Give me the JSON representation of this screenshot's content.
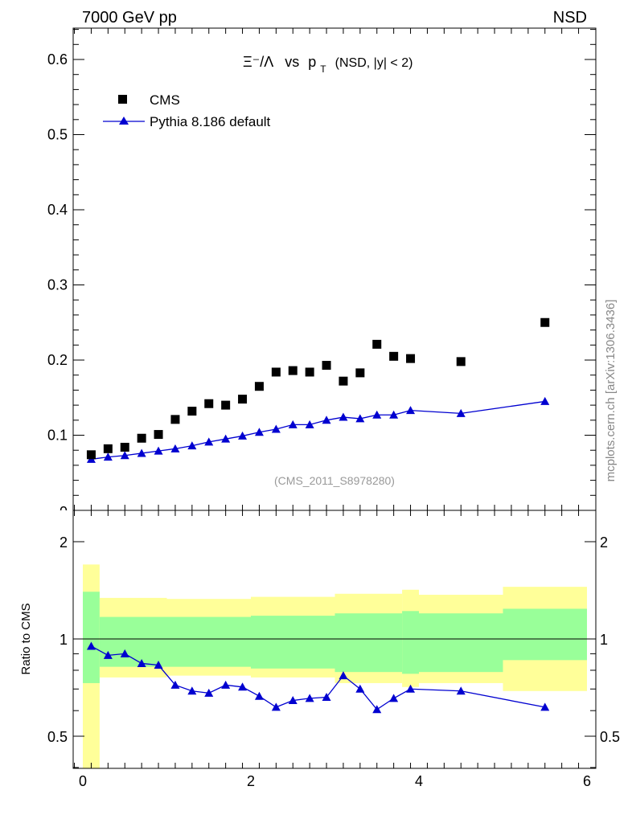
{
  "header": {
    "left": "7000 GeV pp",
    "right": "NSD"
  },
  "watermark": "mcplots.cern.ch [arXiv:1306.3436]",
  "analysis_tag": "(CMS_2011_S8978280)",
  "plot_title": {
    "ratio": "Ξ⁻/Λ",
    "vs": "vs",
    "var": "p",
    "var_sub": "T",
    "cut": "(NSD, |y| < 2)"
  },
  "legend": {
    "cms": "CMS",
    "mc": "Pythia 8.186 default"
  },
  "colors": {
    "mc_line": "#0000d0",
    "band_inner": "#99ff99",
    "band_outer": "#ffff99",
    "data": "#000000"
  },
  "chart_data": [
    {
      "type": "scatter",
      "ylim": [
        0,
        0.64
      ],
      "xlim": [
        -0.1,
        6.1
      ],
      "yticks": [
        0.1,
        0.2,
        0.3,
        0.4,
        0.5,
        0.6
      ],
      "ytick_labels": [
        "0.1",
        "0.2",
        "0.3",
        "0.4",
        "0.5",
        "0.6"
      ],
      "x": [
        0.1,
        0.3,
        0.5,
        0.7,
        0.9,
        1.1,
        1.3,
        1.5,
        1.7,
        1.9,
        2.1,
        2.3,
        2.5,
        2.7,
        2.9,
        3.1,
        3.3,
        3.5,
        3.7,
        3.9,
        4.5,
        5.5
      ],
      "series": [
        {
          "name": "CMS",
          "values": [
            0.074,
            0.082,
            0.084,
            0.096,
            0.101,
            0.121,
            0.132,
            0.142,
            0.14,
            0.148,
            0.165,
            0.184,
            0.186,
            0.184,
            0.193,
            0.172,
            0.183,
            0.221,
            0.205,
            0.202,
            0.198,
            0.25
          ]
        },
        {
          "name": "Pythia 8.186 default",
          "values": [
            0.068,
            0.071,
            0.073,
            0.076,
            0.079,
            0.082,
            0.086,
            0.091,
            0.095,
            0.099,
            0.104,
            0.108,
            0.114,
            0.114,
            0.12,
            0.124,
            0.122,
            0.127,
            0.127,
            0.133,
            0.129,
            0.145
          ]
        }
      ]
    },
    {
      "type": "line",
      "ylabel": "Ratio to CMS",
      "ylim": [
        0.33,
        2.45
      ],
      "xlim": [
        -0.1,
        6.1
      ],
      "xticks": [
        0,
        2,
        4,
        6
      ],
      "xtick_labels": [
        "0",
        "2",
        "4",
        "6"
      ],
      "yticks": [
        0.5,
        1,
        2
      ],
      "ytick_labels": [
        "0.5",
        "1",
        "2"
      ],
      "x": [
        0.1,
        0.3,
        0.5,
        0.7,
        0.9,
        1.1,
        1.3,
        1.5,
        1.7,
        1.9,
        2.1,
        2.3,
        2.5,
        2.7,
        2.9,
        3.1,
        3.3,
        3.5,
        3.7,
        3.9,
        4.5,
        5.5
      ],
      "series": [
        {
          "name": "Pythia 8.186 default",
          "values": [
            0.95,
            0.89,
            0.9,
            0.84,
            0.83,
            0.72,
            0.69,
            0.68,
            0.72,
            0.71,
            0.665,
            0.615,
            0.645,
            0.655,
            0.66,
            0.77,
            0.7,
            0.605,
            0.655,
            0.7,
            0.69,
            0.615
          ]
        }
      ],
      "bands": [
        {
          "x0": 0.0,
          "x1": 0.2,
          "inner": [
            0.73,
            1.4
          ],
          "outer": [
            0.3,
            1.7
          ]
        },
        {
          "x0": 0.2,
          "x1": 1.0,
          "inner": [
            0.82,
            1.17
          ],
          "outer": [
            0.76,
            1.34
          ]
        },
        {
          "x0": 1.0,
          "x1": 2.0,
          "inner": [
            0.82,
            1.17
          ],
          "outer": [
            0.77,
            1.33
          ]
        },
        {
          "x0": 2.0,
          "x1": 3.0,
          "inner": [
            0.81,
            1.18
          ],
          "outer": [
            0.76,
            1.35
          ]
        },
        {
          "x0": 3.0,
          "x1": 3.8,
          "inner": [
            0.79,
            1.2
          ],
          "outer": [
            0.73,
            1.38
          ]
        },
        {
          "x0": 3.8,
          "x1": 4.0,
          "inner": [
            0.78,
            1.22
          ],
          "outer": [
            0.71,
            1.42
          ]
        },
        {
          "x0": 4.0,
          "x1": 5.0,
          "inner": [
            0.79,
            1.2
          ],
          "outer": [
            0.73,
            1.37
          ]
        },
        {
          "x0": 5.0,
          "x1": 6.0,
          "inner": [
            0.86,
            1.24
          ],
          "outer": [
            0.69,
            1.45
          ]
        }
      ]
    }
  ]
}
